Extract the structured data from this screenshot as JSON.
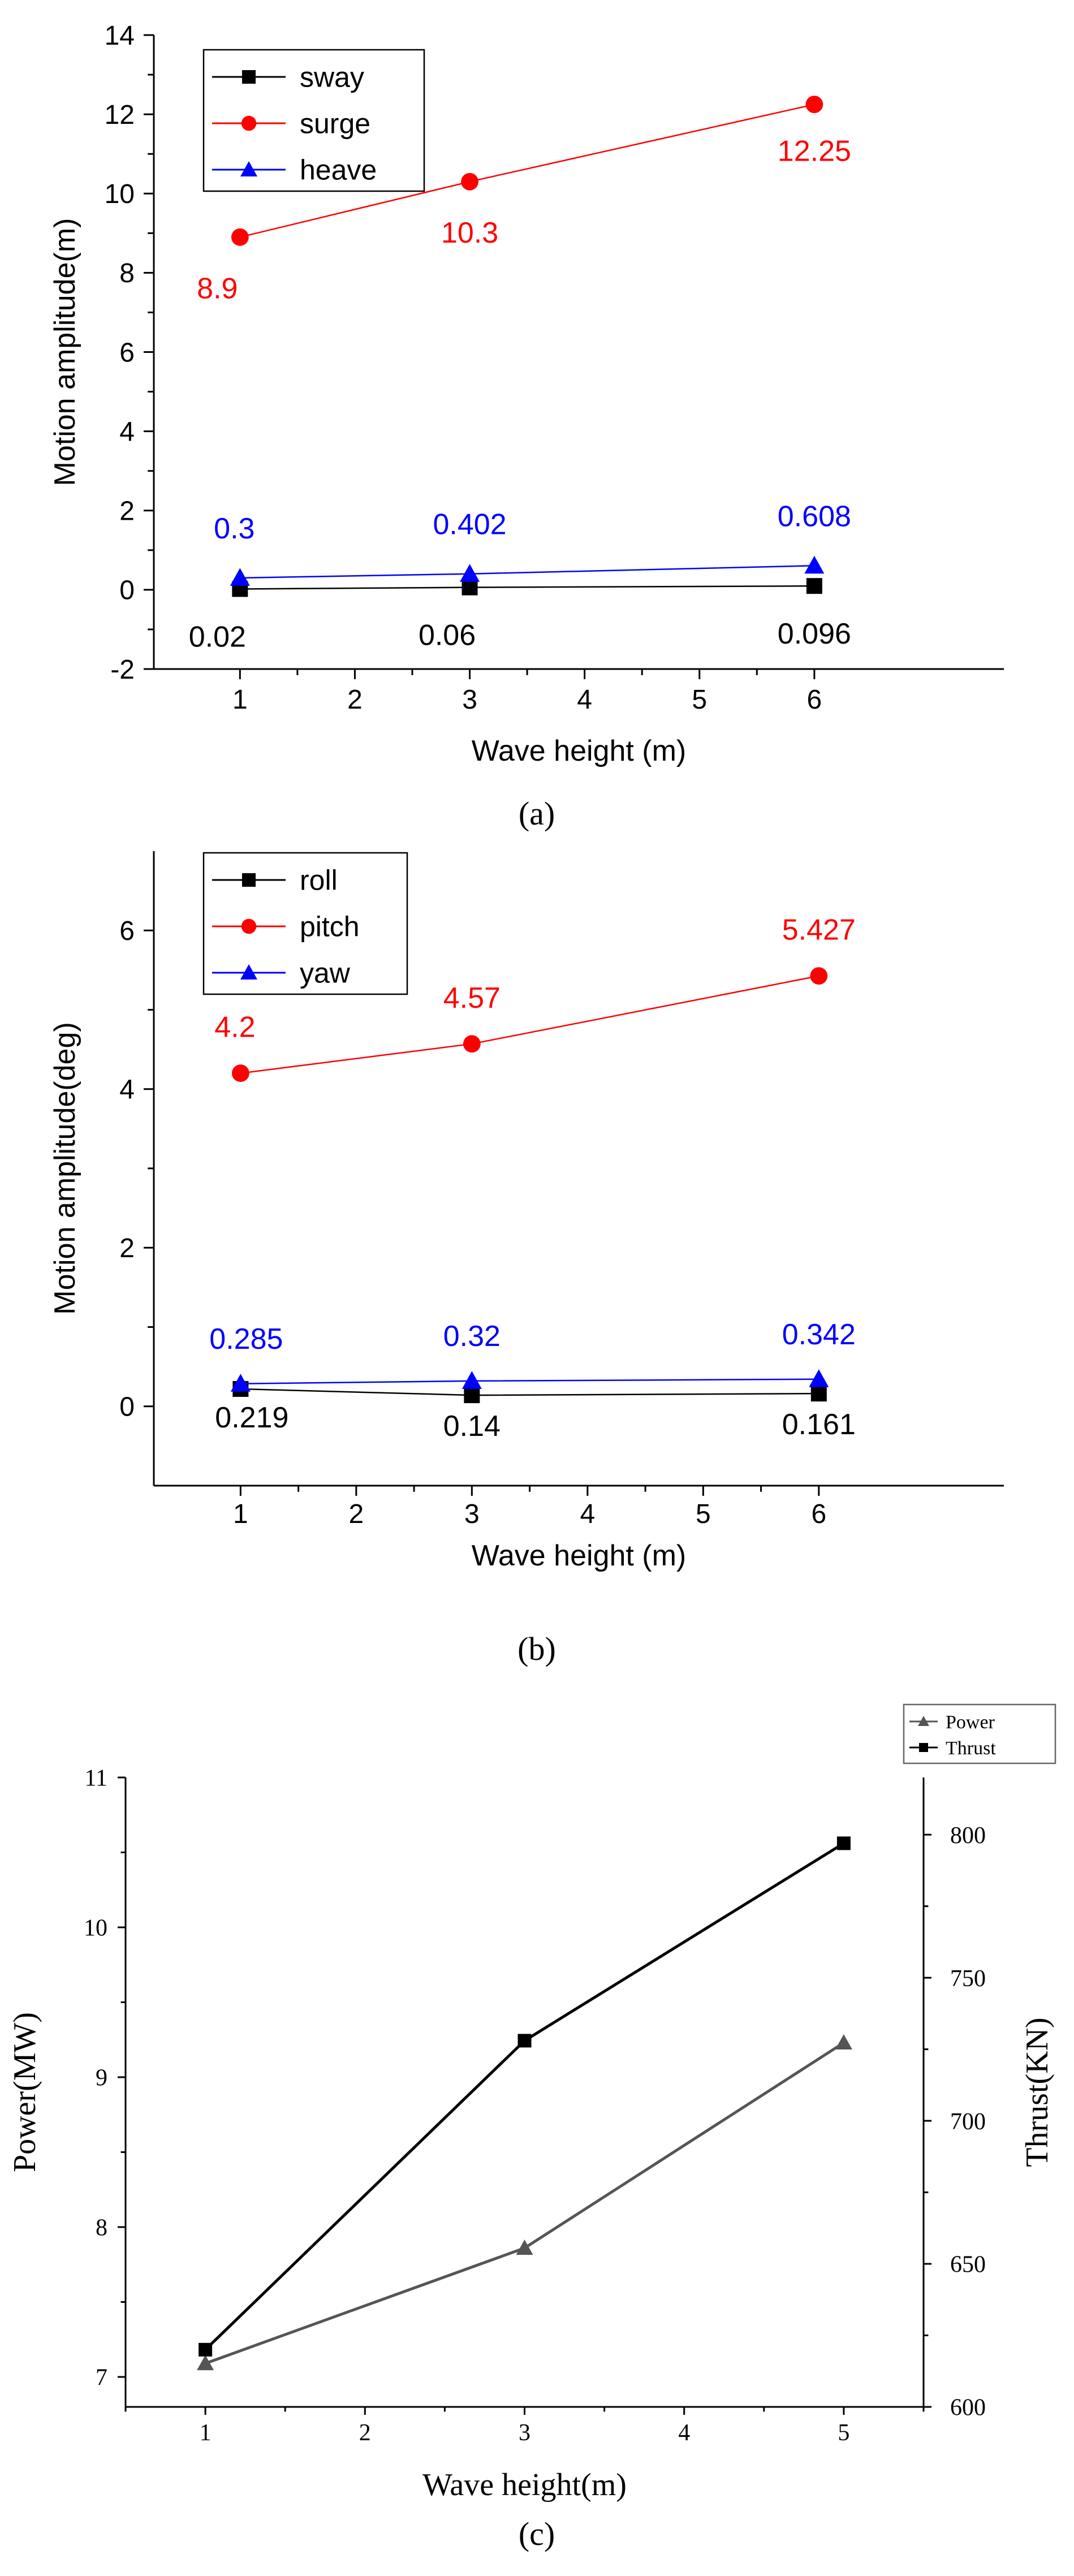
{
  "colors": {
    "black": "#000000",
    "red": "#ff0000",
    "blue": "#0000ff",
    "gray": "#555555"
  },
  "panel_labels": [
    "(a)",
    "(b)",
    "(c)"
  ],
  "chart_data": [
    {
      "type": "line",
      "panel": "a",
      "xlabel": "Wave height (m)",
      "ylabel": "Motion amplitude(m)",
      "xlim": [
        0.25,
        7.65
      ],
      "ylim": [
        -2,
        14
      ],
      "xticks": [
        1,
        2,
        3,
        4,
        5,
        6
      ],
      "yticks": [
        -2,
        0,
        2,
        4,
        6,
        8,
        10,
        12,
        14
      ],
      "x": [
        1,
        3,
        6
      ],
      "series": [
        {
          "name": "sway",
          "color": "#000000",
          "marker": "square",
          "values": [
            0.02,
            0.06,
            0.096
          ],
          "labels": [
            "0.02",
            "0.06",
            "0.096"
          ]
        },
        {
          "name": "surge",
          "color": "#ff0000",
          "marker": "circle",
          "values": [
            8.9,
            10.3,
            12.25
          ],
          "labels": [
            "8.9",
            "10.3",
            "12.25"
          ]
        },
        {
          "name": "heave",
          "color": "#0000ff",
          "marker": "triangle",
          "values": [
            0.3,
            0.402,
            0.608
          ],
          "labels": [
            "0.3",
            "0.402",
            "0.608"
          ]
        }
      ],
      "legend": "top-left"
    },
    {
      "type": "line",
      "panel": "b",
      "xlabel": "Wave height (m)",
      "ylabel": "Motion amplitude(deg)",
      "xlim": [
        0.25,
        7.6
      ],
      "ylim": [
        -1,
        7
      ],
      "xticks": [
        1,
        2,
        3,
        4,
        5,
        6
      ],
      "yticks": [
        0,
        2,
        4,
        6
      ],
      "x": [
        1,
        3,
        6
      ],
      "series": [
        {
          "name": "roll",
          "color": "#000000",
          "marker": "square",
          "values": [
            0.219,
            0.14,
            0.161
          ],
          "labels": [
            "0.219",
            "0.14",
            "0.161"
          ]
        },
        {
          "name": "pitch",
          "color": "#ff0000",
          "marker": "circle",
          "values": [
            4.2,
            4.57,
            5.427
          ],
          "labels": [
            "4.2",
            "4.57",
            "5.427"
          ]
        },
        {
          "name": "yaw",
          "color": "#0000ff",
          "marker": "triangle",
          "values": [
            0.285,
            0.32,
            0.342
          ],
          "labels": [
            "0.285",
            "0.32",
            "0.342"
          ]
        }
      ],
      "legend": "top-left"
    },
    {
      "type": "line",
      "panel": "c",
      "xlabel": "Wave height(m)",
      "ylabel": "Power(MW)",
      "ylabel_right": "Thrust(KN)",
      "xlim": [
        0.5,
        5.5
      ],
      "ylim": [
        6.8,
        11
      ],
      "ylim_right": [
        600,
        820
      ],
      "xticks": [
        1,
        2,
        3,
        4,
        5
      ],
      "yticks": [
        7,
        8,
        9,
        10,
        11
      ],
      "yticks_right": [
        600,
        650,
        700,
        750,
        800
      ],
      "x": [
        1,
        3,
        5
      ],
      "series": [
        {
          "name": "Power",
          "color": "#555555",
          "marker": "triangle",
          "axis": "left",
          "values": [
            7.09,
            7.86,
            9.23
          ]
        },
        {
          "name": "Thrust",
          "color": "#000000",
          "marker": "square",
          "axis": "right",
          "values": [
            620,
            728,
            797
          ]
        }
      ],
      "legend": "top-right-outside"
    }
  ]
}
